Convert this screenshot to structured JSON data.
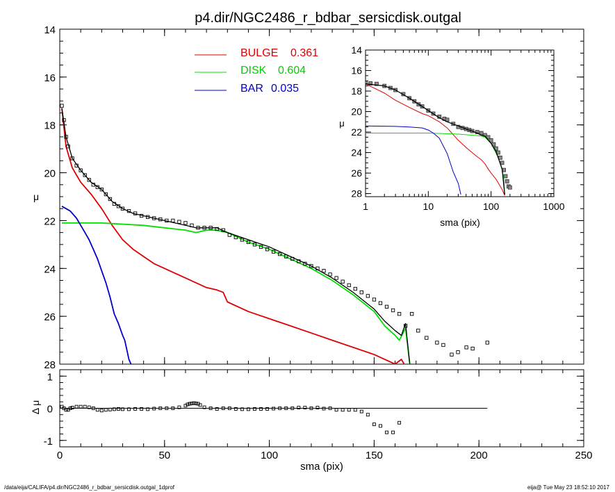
{
  "title": "p4.dir/NGC2486_r_bdbar_sersicdisk.outgal",
  "footer": {
    "left": "/data/eija/CALIFA/p4.dir/NGC2486_r_bdbar_sersicdisk.outgal_1dprof",
    "right": "eija@  Tue May 23 18:52:10 2017"
  },
  "colors": {
    "bulge": "#e00000",
    "disk": "#00e000",
    "bar": "#0000c8",
    "total": "#000000"
  },
  "chart_data": [
    {
      "id": "main",
      "type": "line",
      "ylabel": "μ",
      "xlim": [
        0,
        250
      ],
      "ylim": [
        28,
        14
      ],
      "yticks": [
        14,
        16,
        18,
        20,
        22,
        24,
        26,
        28
      ],
      "legend": [
        {
          "name": "BULGE",
          "value": "0.361",
          "color": "#e00000"
        },
        {
          "name": "DISK",
          "value": "0.604",
          "color": "#00e000"
        },
        {
          "name": "BAR",
          "value": "0.035",
          "color": "#0000c8"
        }
      ],
      "series": [
        {
          "name": "BULGE",
          "color": "#e00000",
          "x": [
            1,
            3,
            6,
            10,
            15,
            20,
            25,
            30,
            35,
            40,
            45,
            50,
            55,
            60,
            65,
            70,
            75,
            78,
            80,
            90,
            100,
            110,
            120,
            130,
            140,
            150,
            155,
            160,
            163,
            165
          ],
          "y": [
            17.3,
            18.9,
            19.8,
            20.4,
            20.9,
            21.5,
            22.2,
            22.8,
            23.2,
            23.5,
            23.8,
            24.0,
            24.2,
            24.4,
            24.6,
            24.8,
            24.9,
            25.0,
            25.4,
            25.8,
            26.1,
            26.4,
            26.7,
            27.0,
            27.3,
            27.6,
            27.8,
            28.0,
            27.8,
            28.1
          ]
        },
        {
          "name": "DISK",
          "color": "#00e000",
          "x": [
            1,
            20,
            40,
            50,
            60,
            65,
            70,
            75,
            80,
            90,
            100,
            110,
            120,
            130,
            140,
            150,
            155,
            160,
            162,
            165,
            167
          ],
          "y": [
            22.1,
            22.1,
            22.2,
            22.3,
            22.4,
            22.5,
            22.4,
            22.4,
            22.5,
            22.9,
            23.2,
            23.6,
            24.0,
            24.5,
            25.1,
            25.8,
            26.4,
            26.8,
            27.0,
            26.5,
            28.0
          ]
        },
        {
          "name": "BAR",
          "color": "#0000c8",
          "x": [
            1,
            3,
            5,
            8,
            10,
            12,
            14,
            16,
            18,
            20,
            22,
            24,
            26,
            28,
            30,
            31,
            32,
            33,
            34
          ],
          "y": [
            21.4,
            21.5,
            21.6,
            21.9,
            22.2,
            22.5,
            22.8,
            23.2,
            23.6,
            24.1,
            24.6,
            25.2,
            25.9,
            26.3,
            26.8,
            27.0,
            27.4,
            27.8,
            28.0
          ]
        },
        {
          "name": "",
          "color": "#000000",
          "x": [
            1,
            3,
            6,
            10,
            15,
            20,
            25,
            30,
            35,
            40,
            45,
            50,
            55,
            60,
            65,
            70,
            75,
            80,
            90,
            100,
            110,
            120,
            130,
            140,
            150,
            155,
            160,
            163,
            165,
            167
          ],
          "y": [
            17.3,
            18.5,
            19.4,
            19.9,
            20.4,
            20.7,
            21.2,
            21.5,
            21.7,
            21.8,
            21.9,
            22.0,
            22.1,
            22.2,
            22.3,
            22.3,
            22.3,
            22.5,
            22.8,
            23.1,
            23.5,
            23.9,
            24.4,
            25.0,
            25.7,
            26.2,
            26.6,
            26.8,
            26.3,
            28.0
          ]
        },
        {
          "name": "",
          "type": "scatter",
          "color": "#000000",
          "x": [
            1,
            2,
            3,
            4,
            6,
            8,
            10,
            12,
            14,
            16,
            18,
            20,
            22,
            24,
            26,
            28,
            30,
            33,
            36,
            39,
            42,
            45,
            48,
            51,
            54,
            57,
            60,
            63,
            66,
            69,
            72,
            75,
            78,
            81,
            84,
            87,
            90,
            93,
            96,
            99,
            102,
            105,
            108,
            111,
            114,
            117,
            120,
            123,
            126,
            129,
            132,
            135,
            138,
            141,
            144,
            147,
            150,
            153,
            156,
            159,
            162,
            165,
            168,
            171,
            175,
            180,
            183,
            187,
            190,
            194,
            197,
            204
          ],
          "y": [
            17.2,
            17.8,
            18.5,
            18.9,
            19.4,
            19.7,
            19.9,
            20.1,
            20.3,
            20.5,
            20.6,
            20.7,
            20.9,
            21.1,
            21.3,
            21.4,
            21.5,
            21.6,
            21.7,
            21.8,
            21.85,
            21.9,
            21.95,
            22.0,
            22.0,
            22.05,
            22.1,
            22.2,
            22.3,
            22.3,
            22.3,
            22.35,
            22.4,
            22.6,
            22.7,
            22.8,
            22.9,
            23.0,
            23.1,
            23.2,
            23.3,
            23.4,
            23.5,
            23.6,
            23.7,
            23.8,
            23.9,
            24.0,
            24.1,
            24.25,
            24.4,
            24.55,
            24.7,
            24.85,
            25.0,
            25.15,
            25.3,
            25.45,
            25.6,
            25.75,
            25.9,
            26.4,
            25.9,
            26.6,
            26.9,
            27.1,
            27.2,
            27.6,
            27.5,
            27.3,
            27.35,
            27.1
          ]
        }
      ]
    },
    {
      "id": "residual",
      "type": "scatter",
      "xlabel": "sma (pix)",
      "ylabel": "Δ μ",
      "xlim": [
        0,
        250
      ],
      "ylim": [
        -1.2,
        1.2
      ],
      "xticks": [
        0,
        50,
        100,
        150,
        200,
        250
      ],
      "yticks": [
        -1,
        0,
        1
      ],
      "zero_line_x": [
        0,
        204
      ],
      "x": [
        1,
        2,
        3,
        4,
        5,
        6,
        8,
        10,
        12,
        14,
        16,
        18,
        20,
        22,
        24,
        26,
        28,
        30,
        33,
        36,
        39,
        42,
        45,
        48,
        51,
        54,
        57,
        60,
        61,
        62,
        63,
        64,
        65,
        66,
        67,
        69,
        72,
        75,
        78,
        81,
        84,
        87,
        90,
        93,
        96,
        99,
        102,
        105,
        108,
        111,
        114,
        117,
        120,
        123,
        126,
        129,
        132,
        135,
        138,
        141,
        144,
        147,
        150,
        153,
        156,
        159,
        162
      ],
      "y": [
        0.05,
        0.0,
        -0.05,
        -0.05,
        0.0,
        0.02,
        0.05,
        0.05,
        0.05,
        0.03,
        0.0,
        -0.05,
        -0.07,
        -0.05,
        -0.04,
        -0.03,
        -0.02,
        -0.03,
        -0.03,
        -0.02,
        -0.02,
        -0.03,
        -0.01,
        0.0,
        0.0,
        0.0,
        0.03,
        0.08,
        0.12,
        0.14,
        0.15,
        0.16,
        0.15,
        0.14,
        0.1,
        0.03,
        0.0,
        -0.02,
        0.0,
        0.0,
        -0.02,
        -0.03,
        -0.03,
        -0.02,
        -0.02,
        -0.02,
        -0.01,
        0.0,
        0.0,
        0.0,
        0.02,
        0.02,
        0.0,
        0.02,
        -0.01,
        0.0,
        -0.05,
        -0.05,
        -0.05,
        -0.05,
        -0.1,
        -0.2,
        -0.5,
        -0.55,
        -0.75,
        -0.75,
        -0.45
      ]
    },
    {
      "id": "inset",
      "type": "line",
      "xscale": "log",
      "xlabel": "sma (pix)",
      "ylabel": "μ",
      "xlim": [
        1,
        1000
      ],
      "ylim": [
        28.3,
        14
      ],
      "yticks": [
        14,
        16,
        18,
        20,
        22,
        24,
        26,
        28
      ],
      "xticklabels": [
        "1",
        "10",
        "100",
        "1000"
      ],
      "series": [
        {
          "name": "BULGE",
          "color": "#e00000",
          "x": [
            1,
            2,
            3,
            5,
            8,
            10,
            15,
            20,
            30,
            40,
            50,
            60,
            70,
            80,
            90,
            100,
            120,
            150,
            165
          ],
          "y": [
            17.3,
            18.2,
            18.9,
            19.6,
            20.2,
            20.4,
            21.0,
            21.6,
            22.8,
            23.5,
            24.0,
            24.4,
            24.7,
            25.1,
            25.6,
            26.0,
            26.6,
            27.6,
            28.2
          ]
        },
        {
          "name": "DISK",
          "color": "#00e000",
          "x": [
            1,
            10,
            30,
            50,
            70,
            80,
            100,
            130,
            150,
            160,
            165
          ],
          "y": [
            22.1,
            22.1,
            22.2,
            22.3,
            22.4,
            22.5,
            23.1,
            24.5,
            25.7,
            26.6,
            28.1
          ]
        },
        {
          "name": "BAR",
          "color": "#0000c8",
          "x": [
            1,
            3,
            5,
            8,
            10,
            12,
            15,
            20,
            25,
            30,
            33
          ],
          "y": [
            21.4,
            21.45,
            21.5,
            21.6,
            21.8,
            22.1,
            22.6,
            24.1,
            25.9,
            27.0,
            28.1
          ]
        },
        {
          "name": "",
          "color": "#000000",
          "x": [
            1,
            2,
            3,
            5,
            8,
            10,
            15,
            20,
            30,
            40,
            50,
            60,
            70,
            80,
            100,
            120,
            150,
            165
          ],
          "y": [
            17.3,
            17.5,
            17.9,
            18.7,
            19.5,
            19.9,
            20.6,
            21.0,
            21.4,
            21.7,
            21.9,
            22.1,
            22.3,
            22.4,
            23.1,
            23.9,
            25.6,
            28.1
          ]
        },
        {
          "name": "",
          "type": "scatter",
          "color": "#000000",
          "x": [
            1,
            1.2,
            1.5,
            2,
            2.5,
            3,
            4,
            5,
            6,
            7,
            8,
            10,
            12,
            15,
            18,
            20,
            25,
            30,
            35,
            40,
            45,
            50,
            60,
            70,
            80,
            90,
            100,
            110,
            120,
            130,
            140,
            150,
            160,
            170,
            180,
            190,
            200
          ],
          "y": [
            17.2,
            17.25,
            17.3,
            17.5,
            17.7,
            17.9,
            18.3,
            18.7,
            19.0,
            19.3,
            19.5,
            19.9,
            20.2,
            20.5,
            20.7,
            20.8,
            21.2,
            21.5,
            21.6,
            21.7,
            21.8,
            21.9,
            22.0,
            22.1,
            22.3,
            22.5,
            22.8,
            23.2,
            23.6,
            24.0,
            24.5,
            25.0,
            25.7,
            26.3,
            26.8,
            27.3,
            27.4
          ]
        }
      ]
    }
  ]
}
